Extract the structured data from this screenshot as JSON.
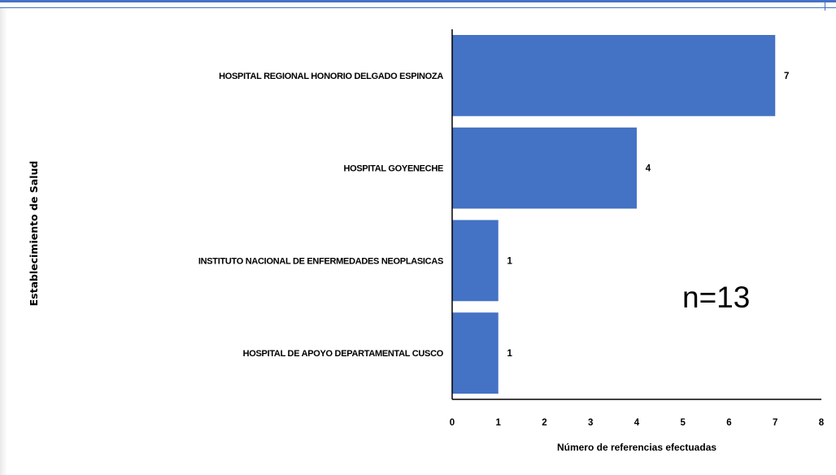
{
  "chart_data": {
    "type": "bar",
    "orientation": "horizontal",
    "categories": [
      "HOSPITAL REGIONAL HONORIO DELGADO ESPINOZA",
      "HOSPITAL GOYENECHE",
      "INSTITUTO NACIONAL DE ENFERMEDADES NEOPLASICAS",
      "HOSPITAL DE APOYO DEPARTAMENTAL CUSCO"
    ],
    "values": [
      7,
      4,
      1,
      1
    ],
    "data_labels": [
      "7",
      "4",
      "1",
      "1"
    ],
    "xlabel": "Número de referencias efectuadas",
    "ylabel": "Establecimiento de Salud",
    "xlim": [
      0,
      8
    ],
    "xticks": [
      "0",
      "1",
      "2",
      "3",
      "4",
      "5",
      "6",
      "7",
      "8"
    ],
    "annotation": "n=13",
    "bar_color": "#4472c4",
    "grid": false,
    "legend": "none"
  }
}
